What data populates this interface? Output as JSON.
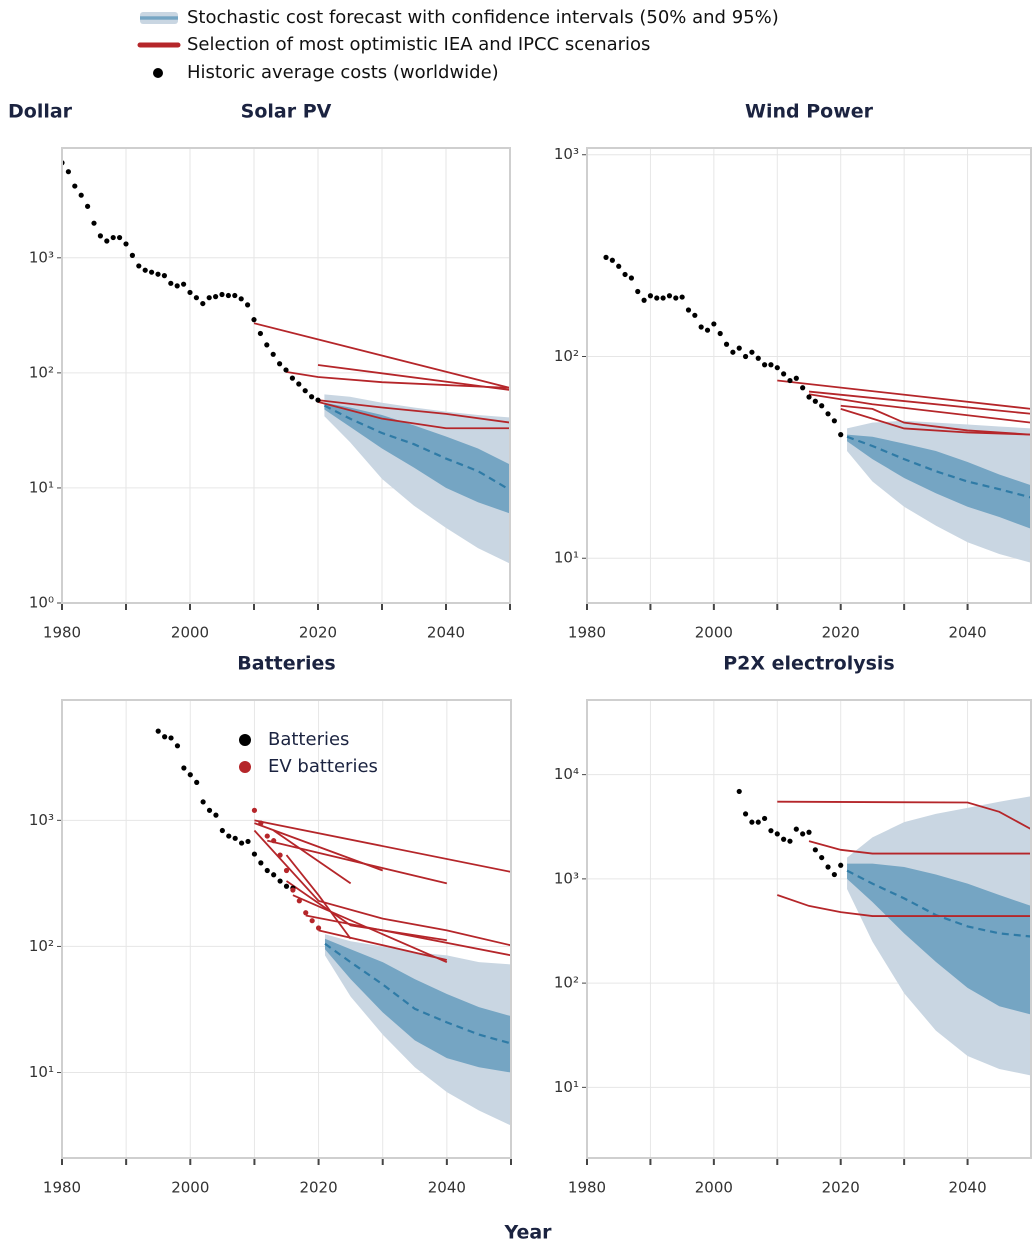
{
  "legend": [
    {
      "label": "Stochastic cost forecast with confidence intervals (50% and 95%)",
      "color": "#7aa7c6"
    },
    {
      "label": "Selection of most optimistic IEA and IPCC scenarios",
      "color": "#b5262a"
    },
    {
      "label": "Historic average costs (worldwide)",
      "color": "#000000"
    }
  ],
  "ylabel": "Dollar",
  "xlabel": "Year",
  "chart_data": [
    {
      "type": "line",
      "title": "Solar PV",
      "log_y": true,
      "grid": true,
      "xlim": [
        1980,
        2050
      ],
      "ylim": [
        1,
        9000
      ],
      "xticks": [
        1980,
        2000,
        2020,
        2040
      ],
      "minor_xticks": [
        1990,
        2010,
        2030,
        2050
      ],
      "yticks": [
        {
          "value": 1,
          "label": "10⁰"
        },
        {
          "value": 10,
          "label": "10¹"
        },
        {
          "value": 100,
          "label": "10²"
        },
        {
          "value": 1000,
          "label": "10³"
        }
      ],
      "historic": {
        "color": "#000000",
        "x": [
          1980,
          1981,
          1982,
          1983,
          1984,
          1985,
          1986,
          1987,
          1988,
          1989,
          1990,
          1991,
          1992,
          1993,
          1994,
          1995,
          1996,
          1997,
          1998,
          1999,
          2000,
          2001,
          2002,
          2003,
          2004,
          2005,
          2006,
          2007,
          2008,
          2009,
          2010,
          2011,
          2012,
          2013,
          2014,
          2015,
          2016,
          2017,
          2018,
          2019,
          2020
        ],
        "values": [
          6700,
          5600,
          4200,
          3500,
          2800,
          2000,
          1550,
          1400,
          1500,
          1500,
          1320,
          1050,
          850,
          780,
          750,
          720,
          700,
          600,
          570,
          590,
          500,
          450,
          400,
          450,
          460,
          480,
          470,
          470,
          440,
          390,
          290,
          220,
          175,
          145,
          120,
          106,
          90,
          80,
          70,
          62,
          58
        ]
      },
      "scenarios": {
        "color": "#b5262a",
        "lines": [
          {
            "x": [
              2010,
              2050
            ],
            "values": [
              270,
              74
            ]
          },
          {
            "x": [
              2020,
              2050
            ],
            "values": [
              117,
              71
            ]
          },
          {
            "x": [
              2015,
              2020,
              2030,
              2050
            ],
            "values": [
              102,
              92,
              83,
              74
            ]
          },
          {
            "x": [
              2020,
              2030,
              2040,
              2050
            ],
            "values": [
              58,
              50,
              44,
              37
            ]
          },
          {
            "x": [
              2020,
              2030,
              2040,
              2050
            ],
            "values": [
              56,
              40,
              33,
              33
            ]
          }
        ]
      },
      "forecast": {
        "color95": "#c9d6e2",
        "color50": "#75a5c3",
        "median_color": "#2f7ba6",
        "x": [
          2021,
          2025,
          2030,
          2035,
          2040,
          2045,
          2050
        ],
        "median": [
          52,
          40,
          30,
          24,
          18,
          14,
          9.6
        ],
        "hi50": [
          55,
          50,
          43,
          35,
          28,
          22,
          16
        ],
        "lo50": [
          48,
          34,
          22,
          15,
          10,
          7.5,
          6
        ],
        "hi95": [
          65,
          62,
          55,
          50,
          46,
          43,
          41
        ],
        "lo95": [
          42,
          25,
          12,
          7,
          4.5,
          3,
          2.2
        ]
      }
    },
    {
      "type": "line",
      "title": "Wind Power",
      "log_y": true,
      "grid": true,
      "xlim": [
        1980,
        2050
      ],
      "ylim": [
        6,
        1080
      ],
      "xticks": [
        1980,
        2000,
        2020,
        2040
      ],
      "minor_xticks": [
        1990,
        2010,
        2030
      ],
      "yticks": [
        {
          "value": 10,
          "label": "10¹"
        },
        {
          "value": 100,
          "label": "10²"
        },
        {
          "value": 1000,
          "label": "10³"
        }
      ],
      "historic": {
        "color": "#000000",
        "x": [
          1983,
          1984,
          1985,
          1986,
          1987,
          1988,
          1989,
          1990,
          1991,
          1992,
          1993,
          1994,
          1995,
          1996,
          1997,
          1998,
          1999,
          2000,
          2001,
          2002,
          2003,
          2004,
          2005,
          2006,
          2007,
          2008,
          2009,
          2010,
          2011,
          2012,
          2013,
          2014,
          2015,
          2016,
          2017,
          2018,
          2019,
          2020
        ],
        "values": [
          310,
          300,
          280,
          255,
          245,
          210,
          190,
          200,
          195,
          195,
          200,
          195,
          197,
          170,
          160,
          140,
          135,
          145,
          130,
          115,
          105,
          110,
          100,
          105,
          98,
          91,
          91,
          88,
          82,
          76,
          78,
          70,
          63,
          60,
          57,
          52,
          48,
          41
        ]
      },
      "scenarios": {
        "color": "#b5262a",
        "lines": [
          {
            "x": [
              2010,
              2050
            ],
            "values": [
              76,
              55
            ]
          },
          {
            "x": [
              2015,
              2050
            ],
            "values": [
              67,
              52
            ]
          },
          {
            "x": [
              2015,
              2025,
              2050
            ],
            "values": [
              65,
              58,
              47
            ]
          },
          {
            "x": [
              2020,
              2025,
              2030,
              2040,
              2050
            ],
            "values": [
              57,
              55,
              47,
              43,
              41
            ]
          },
          {
            "x": [
              2020,
              2030,
              2040,
              2050
            ],
            "values": [
              55,
              44,
              42,
              41
            ]
          }
        ]
      },
      "forecast": {
        "color95": "#c9d6e2",
        "color50": "#75a5c3",
        "median_color": "#2f7ba6",
        "x": [
          2021,
          2025,
          2030,
          2035,
          2040,
          2045,
          2050
        ],
        "median": [
          40,
          36,
          31,
          27,
          24,
          22,
          20
        ],
        "hi50": [
          41,
          40,
          37,
          34,
          30,
          26,
          23
        ],
        "lo50": [
          38,
          31,
          25,
          21,
          18,
          16,
          14
        ],
        "hi95": [
          44,
          47,
          48,
          47,
          46,
          45,
          44
        ],
        "lo95": [
          34,
          24,
          18,
          14.5,
          12,
          10.5,
          9.5
        ]
      }
    },
    {
      "type": "line",
      "title": "Batteries",
      "log_y": true,
      "grid": true,
      "xlim": [
        1980,
        2050
      ],
      "ylim": [
        2.1,
        9000
      ],
      "xticks": [
        1980,
        2000,
        2020,
        2040
      ],
      "minor_xticks": [
        1990,
        2010,
        2030,
        2050
      ],
      "yticks": [
        {
          "value": 10,
          "label": "10¹"
        },
        {
          "value": 100,
          "label": "10²"
        },
        {
          "value": 1000,
          "label": "10³"
        }
      ],
      "historic": {
        "name": "Batteries",
        "color": "#000000",
        "x": [
          1995,
          1996,
          1997,
          1998,
          1999,
          2000,
          2001,
          2002,
          2003,
          2004,
          2005,
          2006,
          2007,
          2008,
          2009,
          2010,
          2011,
          2012,
          2013,
          2014,
          2015,
          2016
        ],
        "values": [
          5100,
          4600,
          4500,
          3900,
          2600,
          2300,
          2000,
          1400,
          1200,
          1100,
          830,
          750,
          720,
          660,
          680,
          540,
          460,
          400,
          370,
          330,
          300,
          290
        ]
      },
      "ev": {
        "name": "EV batteries",
        "color": "#b5262a",
        "x": [
          2010,
          2011,
          2012,
          2013,
          2014,
          2015,
          2016,
          2017,
          2018,
          2019,
          2020
        ],
        "values": [
          1200,
          950,
          750,
          690,
          530,
          400,
          280,
          230,
          185,
          160,
          140
        ]
      },
      "scenarios": {
        "color": "#b5262a",
        "lines": [
          {
            "x": [
              2010,
              2050
            ],
            "values": [
              1000,
              390
            ]
          },
          {
            "x": [
              2010,
              2030
            ],
            "values": [
              950,
              400
            ]
          },
          {
            "x": [
              2012,
              2040
            ],
            "values": [
              690,
              316
            ]
          },
          {
            "x": [
              2013,
              2025
            ],
            "values": [
              830,
              316
            ]
          },
          {
            "x": [
              2015,
              2020,
              2025
            ],
            "values": [
              530,
              255,
              115
            ]
          },
          {
            "x": [
              2010,
              2020,
              2030,
              2040,
              2050
            ],
            "values": [
              830,
              230,
              166,
              134,
              102
            ]
          },
          {
            "x": [
              2015,
              2025,
              2040
            ],
            "values": [
              330,
              147,
              112
            ]
          },
          {
            "x": [
              2018,
              2030,
              2050
            ],
            "values": [
              176,
              134,
              85
            ]
          },
          {
            "x": [
              2016,
              2040
            ],
            "values": [
              255,
              75
            ]
          },
          {
            "x": [
              2020,
              2040
            ],
            "values": [
              134,
              78
            ]
          }
        ]
      },
      "forecast": {
        "color95": "#c9d6e2",
        "color50": "#75a5c3",
        "median_color": "#2f7ba6",
        "x": [
          2021,
          2025,
          2030,
          2035,
          2040,
          2045,
          2050
        ],
        "median": [
          105,
          75,
          50,
          32,
          25,
          20,
          17
        ],
        "hi50": [
          115,
          95,
          75,
          55,
          42,
          33,
          28
        ],
        "lo50": [
          95,
          55,
          30,
          18,
          13,
          11,
          10
        ],
        "hi95": [
          125,
          110,
          100,
          90,
          85,
          75,
          72
        ],
        "lo95": [
          85,
          40,
          20,
          11,
          7,
          5,
          3.8
        ]
      }
    },
    {
      "type": "line",
      "title": "P2X electrolysis",
      "log_y": true,
      "grid": true,
      "xlim": [
        1980,
        2050
      ],
      "ylim": [
        2.1,
        52000
      ],
      "xticks": [
        1980,
        2000,
        2020,
        2040
      ],
      "minor_xticks": [
        1990,
        2010,
        2030
      ],
      "yticks": [
        {
          "value": 10,
          "label": "10¹"
        },
        {
          "value": 100,
          "label": "10²"
        },
        {
          "value": 1000,
          "label": "10³"
        },
        {
          "value": 10000,
          "label": "10⁴"
        }
      ],
      "historic": {
        "color": "#000000",
        "x": [
          2004,
          2005,
          2006,
          2007,
          2008,
          2009,
          2010,
          2011,
          2012,
          2013,
          2014,
          2015,
          2016,
          2017,
          2018,
          2019,
          2020
        ],
        "values": [
          6900,
          4200,
          3500,
          3500,
          3800,
          2900,
          2700,
          2400,
          2300,
          3000,
          2700,
          2800,
          1900,
          1600,
          1300,
          1100,
          1350
        ]
      },
      "scenarios": {
        "color": "#b5262a",
        "lines": [
          {
            "x": [
              2010,
              2040,
              2045,
              2050
            ],
            "values": [
              5500,
              5400,
              4400,
              3000
            ]
          },
          {
            "x": [
              2010,
              2015,
              2020,
              2025,
              2050
            ],
            "values": [
              700,
              550,
              480,
              440,
              440
            ]
          },
          {
            "x": [
              2015,
              2020,
              2025,
              2050
            ],
            "values": [
              2300,
              1900,
              1750,
              1750
            ]
          }
        ]
      },
      "forecast": {
        "color95": "#c9d6e2",
        "color50": "#75a5c3",
        "median_color": "#2f7ba6",
        "x": [
          2021,
          2025,
          2030,
          2035,
          2040,
          2045,
          2050
        ],
        "median": [
          1200,
          900,
          650,
          450,
          350,
          300,
          280
        ],
        "hi50": [
          1400,
          1400,
          1300,
          1100,
          900,
          700,
          550
        ],
        "lo50": [
          1000,
          600,
          300,
          160,
          90,
          60,
          50
        ],
        "hi95": [
          1600,
          2500,
          3500,
          4200,
          4800,
          5500,
          6200
        ],
        "lo95": [
          800,
          250,
          80,
          35,
          20,
          15,
          13
        ]
      }
    }
  ]
}
